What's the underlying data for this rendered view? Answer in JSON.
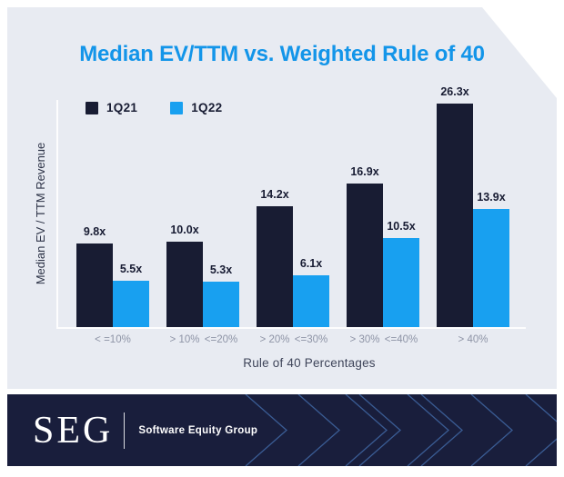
{
  "title": "Median EV/TTM vs. Weighted Rule of 40",
  "legend": [
    {
      "label": "1Q21",
      "color": "#181C33"
    },
    {
      "label": "1Q22",
      "color": "#18A0F0"
    }
  ],
  "chart_data": {
    "type": "bar",
    "title": "Median EV/TTM vs. Weighted Rule of 40",
    "xlabel": "Rule of 40 Percentages",
    "ylabel": "Median EV / TTM Revenue",
    "categories": [
      "<=10%",
      ">10% to <=20%",
      ">20% to <=30%",
      ">30% to <=40%",
      ">40%"
    ],
    "series": [
      {
        "name": "1Q21",
        "color": "#181C33",
        "values": [
          9.8,
          10.0,
          14.2,
          16.9,
          26.3
        ]
      },
      {
        "name": "1Q22",
        "color": "#18A0F0",
        "values": [
          5.5,
          5.3,
          6.1,
          10.5,
          13.9
        ]
      }
    ],
    "bar_value_labels": [
      [
        "9.8x",
        "10.0x",
        "14.2x",
        "16.9x",
        "26.3x"
      ],
      [
        "5.5x",
        "5.3x",
        "6.1x",
        "10.5x",
        "13.9x"
      ]
    ],
    "x_tick_labels": [
      [
        "< =10%"
      ],
      [
        "> 10%",
        "<=20%"
      ],
      [
        "> 20%",
        "<=30%"
      ],
      [
        "> 30%",
        "<=40%"
      ],
      [
        "> 40%"
      ]
    ],
    "ylim": [
      0,
      28
    ],
    "grid": false,
    "legend_position": "top-left"
  },
  "footer": {
    "logo_text": "SEG",
    "company_name": "Software Equity Group"
  },
  "colors": {
    "title": "#1395E9",
    "card_background": "#E8EBF2",
    "bar_dark": "#181C33",
    "bar_blue": "#18A0F0",
    "axis_line": "rgba(255,255,255,0.9)",
    "tick_label": "#8E94A6",
    "axis_title": "#3E4459",
    "banner_background": "#191E3C",
    "chevron_stroke": "#3A5C94"
  }
}
